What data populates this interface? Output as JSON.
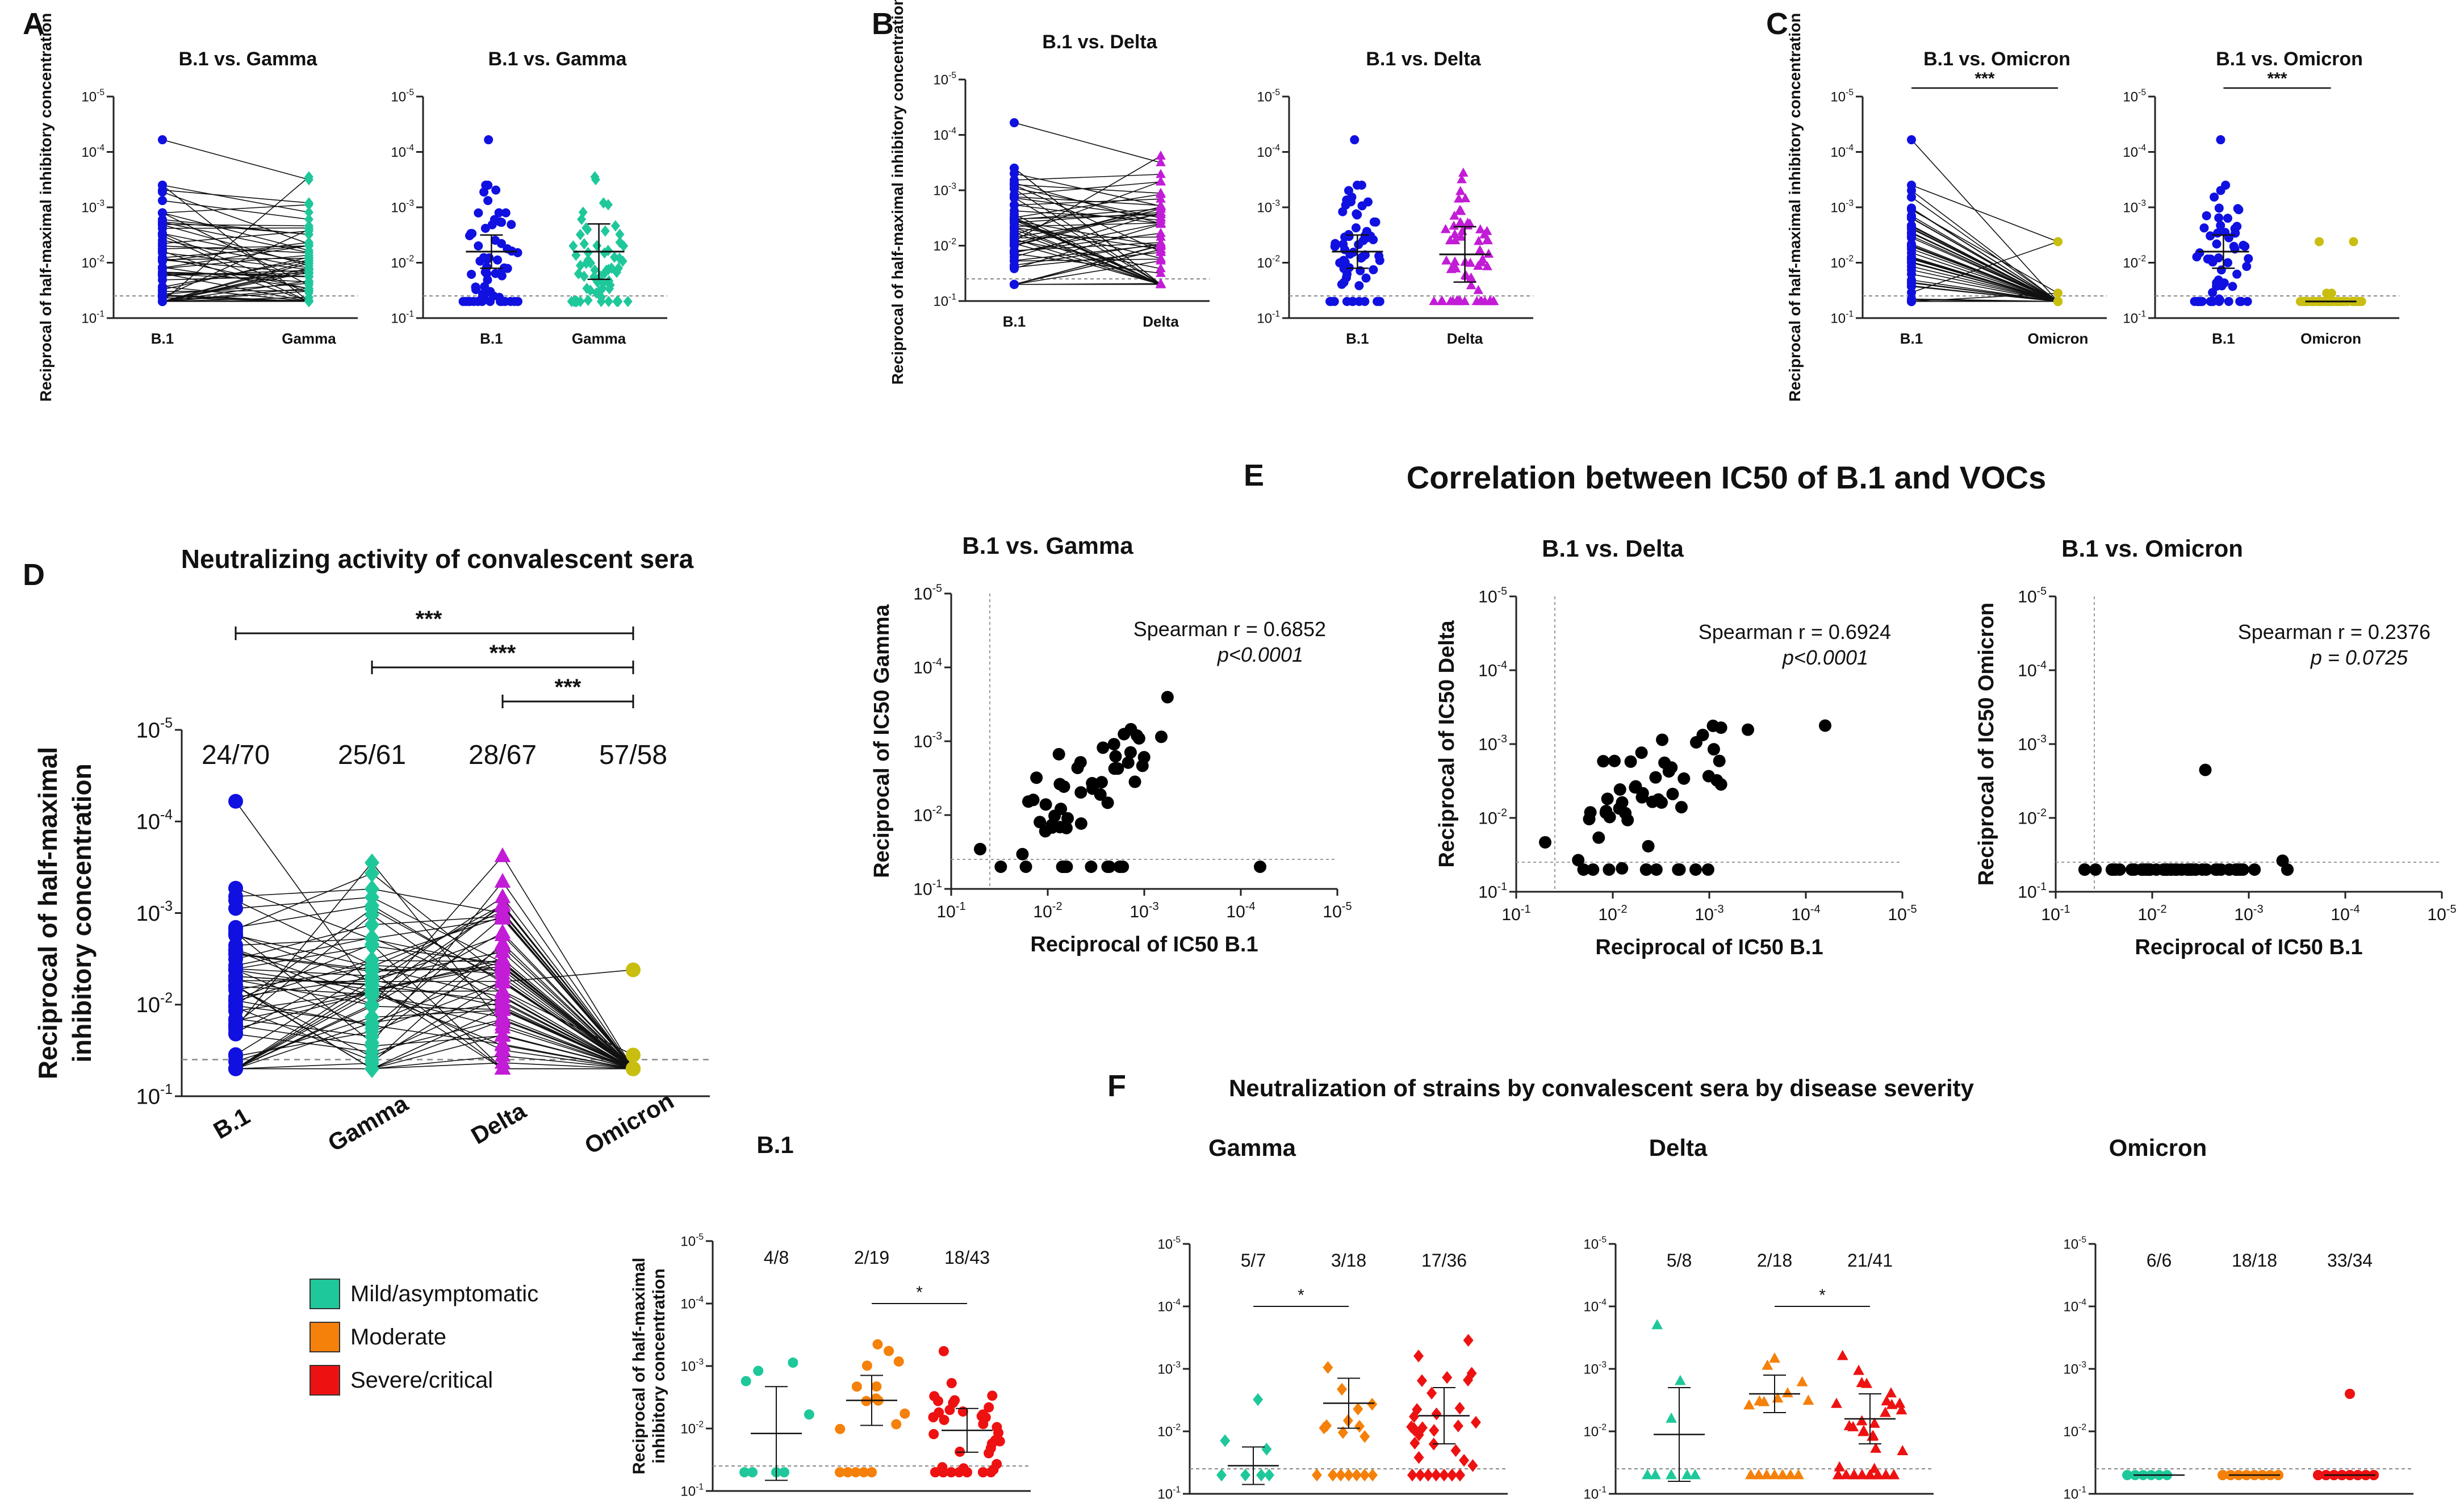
{
  "colors": {
    "B.1": "#1010e0",
    "Gamma": "#1fc89a",
    "Delta": "#c21cd6",
    "Omicron": "#c8be10",
    "mild": "#1fc89a",
    "moderate": "#f5800a",
    "severe": "#ee1111"
  },
  "axis_tick_labels": [
    "10-1",
    "10-2",
    "10-3",
    "10-4",
    "10-5"
  ],
  "ylabel_main": "Reciprocal of half-maximal inhibitory concentration",
  "chart_data": [
    {
      "id": "A1",
      "panel": "A",
      "type": "paired-dot",
      "title": "B.1 vs. Gamma",
      "categories": [
        "B.1",
        "Gamma"
      ],
      "ylabel": "Reciprocal of half-maximal inhibitory concentration",
      "ylim": [
        1,
        5
      ],
      "threshold": 1.4,
      "n": 62,
      "seed": 11,
      "max": [
        4.22,
        3.55
      ]
    },
    {
      "id": "A2",
      "panel": "",
      "type": "scatter-dot",
      "title": "B.1 vs. Gamma",
      "categories": [
        "B.1",
        "Gamma"
      ],
      "ylim": [
        1,
        5
      ],
      "threshold": 1.4,
      "n": 62,
      "seed": 11,
      "max": [
        4.22,
        3.55
      ],
      "mean": [
        2.2,
        2.2
      ],
      "sd": [
        0.3,
        0.5
      ],
      "significance": ""
    },
    {
      "id": "B1",
      "panel": "B",
      "type": "paired-dot",
      "title": "B.1 vs. Delta",
      "categories": [
        "B.1",
        "Delta"
      ],
      "ylabel": "Reciprocal of half-maximal inhibitory concentration",
      "ylim": [
        1,
        5
      ],
      "threshold": 1.4,
      "n": 62,
      "seed": 23,
      "max": [
        4.22,
        3.62
      ]
    },
    {
      "id": "B2",
      "panel": "",
      "type": "scatter-dot",
      "title": "B.1 vs. Delta",
      "categories": [
        "B.1",
        "Delta"
      ],
      "ylim": [
        1,
        5
      ],
      "threshold": 1.4,
      "n": 62,
      "seed": 23,
      "max": [
        4.22,
        3.62
      ],
      "mean": [
        2.2,
        2.15
      ],
      "sd": [
        0.3,
        0.5
      ],
      "significance": ""
    },
    {
      "id": "C1",
      "panel": "C",
      "type": "paired-dot",
      "title": "B.1 vs. Omicron",
      "categories": [
        "B.1",
        "Omicron"
      ],
      "ylabel": "Reciprocal of half-maximal inhibitory concentration",
      "ylim": [
        1,
        5
      ],
      "threshold": 1.4,
      "n": 62,
      "seed": 37,
      "max": [
        4.22,
        2.38
      ],
      "significance": "***"
    },
    {
      "id": "C2",
      "panel": "",
      "type": "scatter-dot",
      "title": "B.1 vs. Omicron",
      "categories": [
        "B.1",
        "Omicron"
      ],
      "ylim": [
        1,
        5
      ],
      "threshold": 1.4,
      "n": 62,
      "seed": 37,
      "max": [
        4.22,
        2.38
      ],
      "mean": [
        2.2,
        1.3
      ],
      "sd": [
        0.3,
        0.0
      ],
      "significance": "***"
    },
    {
      "id": "D",
      "panel": "D",
      "type": "paired-dot",
      "title": "Neutralizing activity of convalescent sera",
      "categories": [
        "B.1",
        "Gamma",
        "Delta",
        "Omicron"
      ],
      "ylabel": "Reciprocal of half-maximal inhibitory concentration",
      "ylim": [
        1,
        5
      ],
      "threshold": 1.4,
      "counts": [
        "24/70",
        "25/61",
        "28/67",
        "57/58"
      ],
      "significance": [
        "***",
        "***",
        "***"
      ],
      "max": [
        4.22,
        3.55,
        3.62,
        2.38
      ]
    },
    {
      "id": "E1",
      "panel": "E",
      "type": "scatter",
      "title": "B.1 vs. Gamma",
      "xlabel": "Reciprocal of IC50 B.1",
      "ylabel": "Reciprocal of IC50 Gamma",
      "xlim": [
        1,
        5
      ],
      "ylim": [
        1,
        5
      ],
      "stat": "Spearman r = 0.6852",
      "pvalue": "p<0.0001",
      "seed": 51,
      "slope": 0.75,
      "spread": 0.3
    },
    {
      "id": "E2",
      "panel": "",
      "type": "scatter",
      "title": "B.1 vs. Delta",
      "xlabel": "Reciprocal of IC50 B.1",
      "ylabel": "Reciprocal of IC50 Delta",
      "xlim": [
        1,
        5
      ],
      "ylim": [
        1,
        5
      ],
      "stat": "Spearman r = 0.6924",
      "pvalue": "p<0.0001",
      "seed": 67,
      "slope": 0.75,
      "spread": 0.35
    },
    {
      "id": "E3",
      "panel": "",
      "type": "scatter",
      "title": "B.1 vs. Omicron",
      "xlabel": "Reciprocal of IC50 B.1",
      "ylabel": "Reciprocal of IC50 Omicron",
      "xlim": [
        1,
        5
      ],
      "ylim": [
        1,
        5
      ],
      "stat": "Spearman r = 0.2376",
      "pvalue": "p = 0.0725",
      "seed": 71,
      "slope": 0.0,
      "spread": 0.0
    },
    {
      "id": "F1",
      "panel": "F",
      "type": "severity-dot",
      "title": "B.1",
      "categories": [
        "mild",
        "moderate",
        "severe"
      ],
      "ylabel": "Reciprocal of half-maximal inhibitory concentration",
      "ylim": [
        1,
        5
      ],
      "threshold": 1.4,
      "counts": [
        "4/8",
        "2/19",
        "18/43"
      ],
      "n": [
        8,
        19,
        43
      ],
      "mean": [
        1.92,
        2.45,
        1.97
      ],
      "sd": [
        0.75,
        0.4,
        0.35
      ],
      "significance": "*",
      "sig_pair": [
        1,
        2
      ],
      "seed": 81
    },
    {
      "id": "F2",
      "panel": "",
      "type": "severity-dot",
      "title": "Gamma",
      "categories": [
        "mild",
        "moderate",
        "severe"
      ],
      "ylim": [
        1,
        5
      ],
      "threshold": 1.4,
      "counts": [
        "5/7",
        "3/18",
        "17/36"
      ],
      "n": [
        7,
        18,
        36
      ],
      "mean": [
        1.45,
        2.45,
        2.25
      ],
      "sd": [
        0.3,
        0.4,
        0.45
      ],
      "significance": "*",
      "sig_pair": [
        0,
        1
      ],
      "seed": 91
    },
    {
      "id": "F3",
      "panel": "",
      "type": "severity-dot",
      "title": "Delta",
      "categories": [
        "mild",
        "moderate",
        "severe"
      ],
      "ylim": [
        1,
        5
      ],
      "threshold": 1.4,
      "counts": [
        "5/8",
        "2/18",
        "21/41"
      ],
      "n": [
        8,
        18,
        41
      ],
      "mean": [
        1.95,
        2.6,
        2.2
      ],
      "sd": [
        0.75,
        0.3,
        0.4
      ],
      "significance": "*",
      "sig_pair": [
        1,
        2
      ],
      "seed": 101
    },
    {
      "id": "F4",
      "panel": "",
      "type": "severity-dot",
      "title": "Omicron",
      "categories": [
        "mild",
        "moderate",
        "severe"
      ],
      "ylim": [
        1,
        5
      ],
      "threshold": 1.4,
      "counts": [
        "6/6",
        "18/18",
        "33/34"
      ],
      "n": [
        6,
        18,
        34
      ],
      "mean": [
        1.3,
        1.3,
        1.3
      ],
      "sd": [
        0,
        0,
        0
      ],
      "significance": "",
      "seed": 111,
      "outlier": [
        null,
        null,
        2.6
      ]
    }
  ],
  "headers": {
    "E_title": "Correlation between IC50 of B.1 and VOCs",
    "F_title": "Neutralization of strains by convalescent sera by disease severity"
  },
  "legend": [
    {
      "label": "Mild/asymptomatic",
      "color": "#1fc89a"
    },
    {
      "label": "Moderate",
      "color": "#f5800a"
    },
    {
      "label": "Severe/critical",
      "color": "#ee1111"
    }
  ]
}
